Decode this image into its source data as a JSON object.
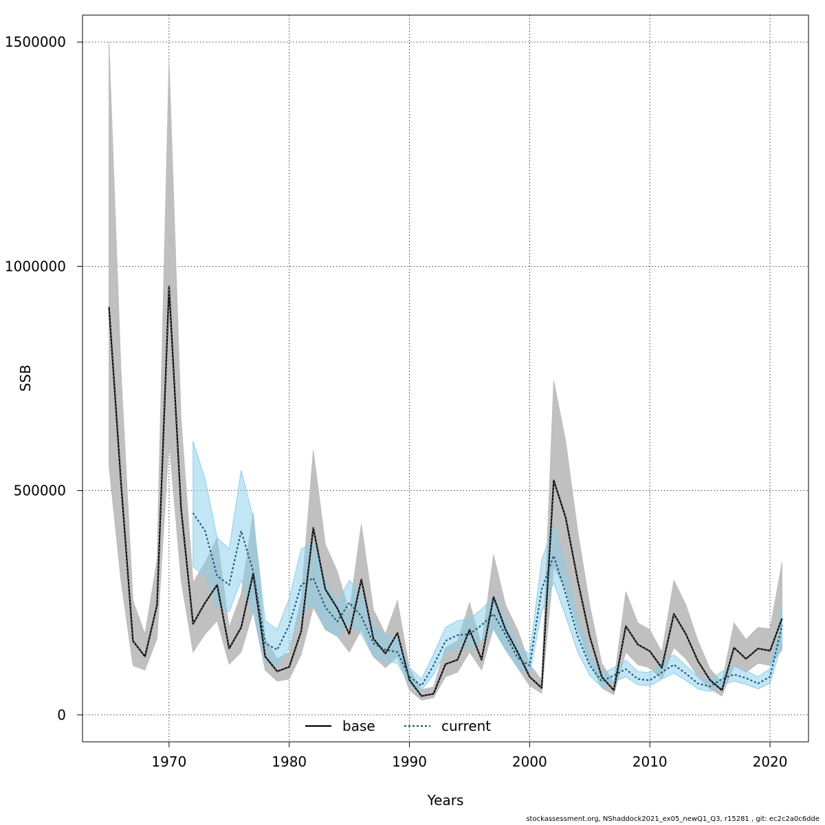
{
  "footer": "stockassessment.org, NShaddock2021_ex05_newQ1_Q3, r15281 , git: ec2c2a0c6dde",
  "chart_data": {
    "type": "line",
    "xlabel": "Years",
    "ylabel": "SSB",
    "xlim": [
      1962.8,
      2023.2
    ],
    "ylim": [
      -60000,
      1560000
    ],
    "xticks": [
      1970,
      1980,
      1990,
      2000,
      2010,
      2020
    ],
    "yticks": [
      0,
      500000,
      1000000,
      1500000
    ],
    "grid": true,
    "legend_position": "bottom-center",
    "colors": {
      "base_line": "#000000",
      "base_band": "#bdbdbd",
      "current_line": "#1a5a78",
      "current_band": "#87ceeb"
    },
    "series": [
      {
        "name": "base",
        "x": [
          1965,
          1966,
          1967,
          1968,
          1969,
          1970,
          1971,
          1972,
          1973,
          1974,
          1975,
          1976,
          1977,
          1978,
          1979,
          1980,
          1981,
          1982,
          1983,
          1984,
          1985,
          1986,
          1987,
          1988,
          1989,
          1990,
          1991,
          1992,
          1993,
          1994,
          1995,
          1996,
          1997,
          1998,
          1999,
          2000,
          2001,
          2002,
          2003,
          2004,
          2005,
          2006,
          2007,
          2008,
          2009,
          2010,
          2011,
          2012,
          2013,
          2014,
          2015,
          2016,
          2017,
          2018,
          2019,
          2020,
          2021
        ],
        "values": [
          910000,
          520000,
          165000,
          130000,
          245000,
          955000,
          460000,
          203000,
          250000,
          290000,
          148000,
          195000,
          315000,
          130000,
          97000,
          107000,
          187000,
          417000,
          280000,
          238000,
          180000,
          302000,
          170000,
          137000,
          183000,
          78000,
          42000,
          47000,
          113000,
          123000,
          190000,
          123000,
          263000,
          190000,
          140000,
          85000,
          60000,
          523000,
          440000,
          300000,
          175000,
          85000,
          55000,
          198000,
          157000,
          142000,
          105000,
          225000,
          180000,
          120000,
          78000,
          55000,
          150000,
          125000,
          148000,
          143000,
          215000
        ],
        "lower": [
          555000,
          300000,
          110000,
          100000,
          170000,
          610000,
          300000,
          140000,
          180000,
          210000,
          113000,
          140000,
          230000,
          100000,
          75000,
          80000,
          135000,
          240000,
          190000,
          175000,
          140000,
          190000,
          130000,
          105000,
          130000,
          55000,
          33000,
          38000,
          85000,
          95000,
          140000,
          100000,
          195000,
          145000,
          105000,
          65000,
          48000,
          330000,
          280000,
          190000,
          115000,
          60000,
          45000,
          140000,
          112000,
          105000,
          80000,
          150000,
          125000,
          85000,
          58000,
          42000,
          110000,
          95000,
          115000,
          110000,
          145000
        ],
        "upper": [
          1500000,
          770000,
          255000,
          180000,
          345000,
          1460000,
          660000,
          295000,
          340000,
          395000,
          195000,
          270000,
          450000,
          170000,
          125000,
          140000,
          260000,
          590000,
          380000,
          320000,
          230000,
          425000,
          235000,
          180000,
          255000,
          103000,
          56000,
          62000,
          150000,
          165000,
          250000,
          155000,
          357000,
          245000,
          190000,
          113000,
          78000,
          745000,
          610000,
          410000,
          245000,
          115000,
          72000,
          275000,
          205000,
          190000,
          140000,
          300000,
          245000,
          165000,
          103000,
          72000,
          205000,
          168000,
          195000,
          192000,
          340000
        ]
      },
      {
        "name": "current",
        "x": [
          1972,
          1973,
          1974,
          1975,
          1976,
          1977,
          1978,
          1979,
          1980,
          1981,
          1982,
          1983,
          1984,
          1985,
          1986,
          1987,
          1988,
          1989,
          1990,
          1991,
          1992,
          1993,
          1994,
          1995,
          1996,
          1997,
          1998,
          1999,
          2000,
          2001,
          2002,
          2003,
          2004,
          2005,
          2006,
          2007,
          2008,
          2009,
          2010,
          2011,
          2012,
          2013,
          2014,
          2015,
          2016,
          2017,
          2018,
          2019,
          2020,
          2021
        ],
        "values": [
          450000,
          410000,
          310000,
          290000,
          410000,
          320000,
          160000,
          145000,
          200000,
          290000,
          305000,
          240000,
          208000,
          250000,
          220000,
          160000,
          145000,
          140000,
          85000,
          65000,
          110000,
          165000,
          178000,
          180000,
          200000,
          225000,
          178000,
          127000,
          110000,
          280000,
          355000,
          270000,
          175000,
          110000,
          75000,
          88000,
          102000,
          80000,
          77000,
          95000,
          112000,
          92000,
          70000,
          63000,
          80000,
          90000,
          82000,
          70000,
          85000,
          200000
        ],
        "lower": [
          330000,
          310000,
          240000,
          230000,
          300000,
          230000,
          120000,
          110000,
          150000,
          230000,
          245000,
          195000,
          175000,
          205000,
          180000,
          130000,
          120000,
          115000,
          70000,
          55000,
          90000,
          140000,
          150000,
          150000,
          165000,
          190000,
          145000,
          105000,
          90000,
          230000,
          295000,
          220000,
          140000,
          88000,
          62000,
          73000,
          85000,
          67000,
          65000,
          80000,
          93000,
          77000,
          58000,
          52000,
          66000,
          75000,
          68000,
          58000,
          71000,
          160000
        ],
        "upper": [
          610000,
          525000,
          395000,
          370000,
          545000,
          440000,
          210000,
          190000,
          260000,
          370000,
          385000,
          300000,
          250000,
          300000,
          270000,
          200000,
          178000,
          170000,
          105000,
          80000,
          135000,
          195000,
          210000,
          215000,
          235000,
          265000,
          215000,
          155000,
          135000,
          345000,
          425000,
          330000,
          215000,
          135000,
          92000,
          105000,
          122000,
          97000,
          94000,
          115000,
          134000,
          110000,
          85000,
          76000,
          97000,
          108000,
          99000,
          85000,
          103000,
          245000
        ]
      }
    ]
  }
}
